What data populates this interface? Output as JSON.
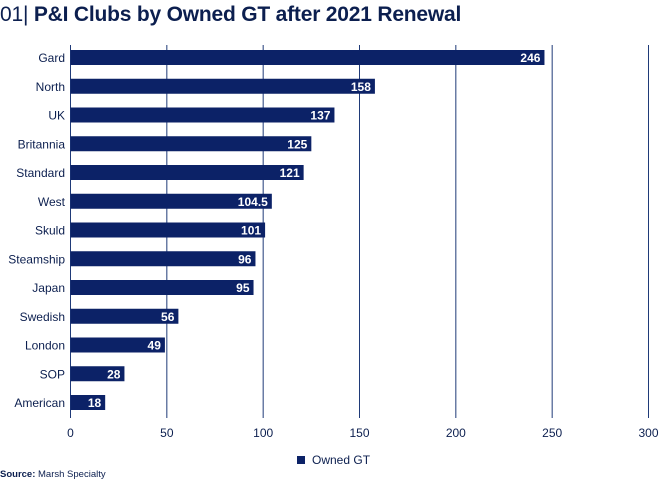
{
  "header": {
    "number": "01|",
    "title": "P&I Clubs by Owned GT after 2021 Renewal"
  },
  "colors": {
    "bar": "#0c2267",
    "text": "#0c1f4f",
    "gridline": "#1f3a78",
    "axis": "#1f3a78"
  },
  "chart_data": {
    "type": "bar",
    "orientation": "horizontal",
    "title": "P&I Clubs by Owned GT after 2021 Renewal",
    "categories": [
      "Gard",
      "North",
      "UK",
      "Britannia",
      "Standard",
      "West",
      "Skuld",
      "Steamship",
      "Japan",
      "Swedish",
      "London",
      "SOP",
      "American"
    ],
    "series": [
      {
        "name": "Owned GT",
        "values": [
          246,
          158,
          137,
          125,
          121,
          104.5,
          101,
          96,
          95,
          56,
          49,
          28,
          18
        ]
      }
    ],
    "value_labels": [
      "246",
      "158",
      "137",
      "125",
      "121",
      "104.5",
      "101",
      "96",
      "95",
      "56",
      "49",
      "28",
      "18"
    ],
    "xlim": [
      0,
      300
    ],
    "xticks": [
      "0",
      "50",
      "100",
      "150",
      "200",
      "250",
      "300"
    ],
    "tick_values": [
      0,
      50,
      100,
      150,
      200,
      250,
      300
    ],
    "xlabel": "",
    "ylabel": "",
    "grid": true,
    "legend": {
      "position": "bottom-center",
      "label": "Owned GT"
    }
  },
  "source": {
    "label": "Source:",
    "text": "Marsh Specialty"
  }
}
